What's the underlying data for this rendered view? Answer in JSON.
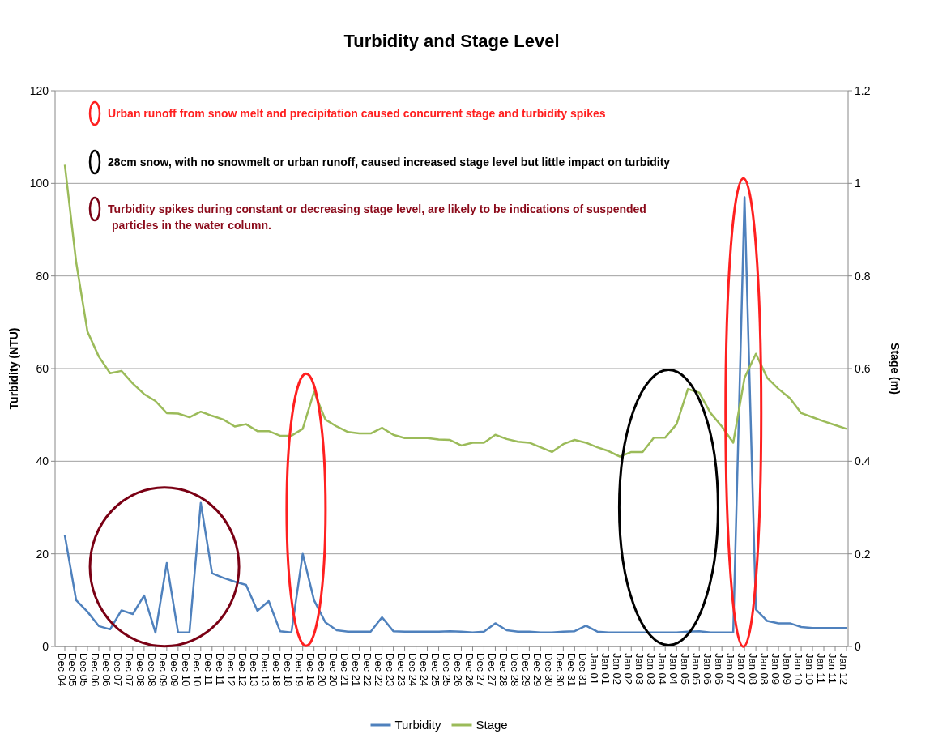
{
  "chart_data": {
    "type": "line",
    "title": "Turbidity and Stage Level",
    "ylabel": "Turbidity (NTU)",
    "y2label": "Stage (m)",
    "categories": [
      "Dec 04",
      "Dec 05",
      "Dec 05",
      "Dec 06",
      "Dec 06",
      "Dec 07",
      "Dec 07",
      "Dec 08",
      "Dec 08",
      "Dec 09",
      "Dec 09",
      "Dec 10",
      "Dec 10",
      "Dec 11",
      "Dec 11",
      "Dec 12",
      "Dec 12",
      "Dec 13",
      "Dec 13",
      "Dec 18",
      "Dec 18",
      "Dec 19",
      "Dec 19",
      "Dec 20",
      "Dec 20",
      "Dec 21",
      "Dec 21",
      "Dec 22",
      "Dec 22",
      "Dec 23",
      "Dec 23",
      "Dec 24",
      "Dec 24",
      "Dec 25",
      "Dec 25",
      "Dec 26",
      "Dec 26",
      "Dec 27",
      "Dec 27",
      "Dec 28",
      "Dec 28",
      "Dec 29",
      "Dec 29",
      "Dec 30",
      "Dec 30",
      "Dec 31",
      "Dec 31",
      "Jan 01",
      "Jan 01",
      "Jan 02",
      "Jan 02",
      "Jan 03",
      "Jan 03",
      "Jan 04",
      "Jan 04",
      "Jan 05",
      "Jan 05",
      "Jan 06",
      "Jan 06",
      "Jan 07",
      "Jan 07",
      "Jan 08",
      "Jan 08",
      "Jan 09",
      "Jan 09",
      "Jan 10",
      "Jan 10",
      "Jan 11",
      "Jan 11",
      "Jan 12"
    ],
    "series": [
      {
        "name": "Turbidity",
        "color": "#4f81bd",
        "values": [
          24,
          10,
          7.5,
          4.4,
          3.7,
          7.8,
          7,
          11,
          3,
          18,
          3,
          3,
          31,
          15.8,
          14.8,
          14,
          13.3,
          7.7,
          9.8,
          3.3,
          3,
          20,
          10,
          5.2,
          3.5,
          3.2,
          3.2,
          3.2,
          6.3,
          3.3,
          3.2,
          3.2,
          3.2,
          3.2,
          3.3,
          3.2,
          3,
          3.2,
          5,
          3.5,
          3.2,
          3.2,
          3,
          3,
          3.2,
          3.3,
          4.5,
          3.2,
          3,
          3,
          3,
          3,
          3,
          3,
          3,
          3.2,
          3.3,
          3,
          3,
          3,
          97,
          8,
          5.5,
          5,
          5,
          4.2,
          4,
          4,
          4,
          4
        ]
      },
      {
        "name": "Stage",
        "color": "#9bbb59",
        "axis": "y2",
        "values": [
          1.04,
          0.83,
          0.68,
          0.626,
          0.59,
          0.595,
          0.568,
          0.545,
          0.53,
          0.504,
          0.503,
          0.495,
          0.507,
          0.498,
          0.49,
          0.475,
          0.48,
          0.465,
          0.465,
          0.455,
          0.455,
          0.47,
          0.55,
          0.49,
          0.475,
          0.463,
          0.46,
          0.46,
          0.472,
          0.457,
          0.45,
          0.45,
          0.45,
          0.447,
          0.446,
          0.434,
          0.44,
          0.44,
          0.457,
          0.448,
          0.442,
          0.44,
          0.43,
          0.42,
          0.437,
          0.446,
          0.44,
          0.43,
          0.422,
          0.41,
          0.42,
          0.42,
          0.451,
          0.451,
          0.48,
          0.556,
          0.548,
          0.504,
          0.475,
          0.44,
          0.58,
          0.632,
          0.58,
          0.556,
          0.536,
          0.504,
          0.495,
          0.486,
          0.478,
          0.47
        ]
      }
    ],
    "ylim": [
      0,
      120
    ],
    "yticks": [
      0,
      20,
      40,
      60,
      80,
      100,
      120
    ],
    "y2lim": [
      0,
      1.2
    ],
    "y2ticks": [
      0,
      {
        "value": 0.2,
        "label": "0.2"
      },
      {
        "value": 0.4,
        "label": "0.4"
      },
      {
        "value": 0.6,
        "label": "0.6"
      },
      {
        "value": 0.8,
        "label": "0.8"
      },
      1,
      {
        "value": 1.2,
        "label": "1.2"
      }
    ],
    "grid": "y",
    "legend": "bottom",
    "marker": "none",
    "line_style": "solid",
    "annotations": [
      "Urban runoff from snow melt and precipitation caused concurrent stage and turbidity spikes",
      "28cm snow, with no snowmelt or urban runoff, caused increased stage level but little impact on turbidity",
      "Turbidity spikes during constant or decreasing stage level, are likely to be indications of suspended particles in the water column."
    ]
  }
}
